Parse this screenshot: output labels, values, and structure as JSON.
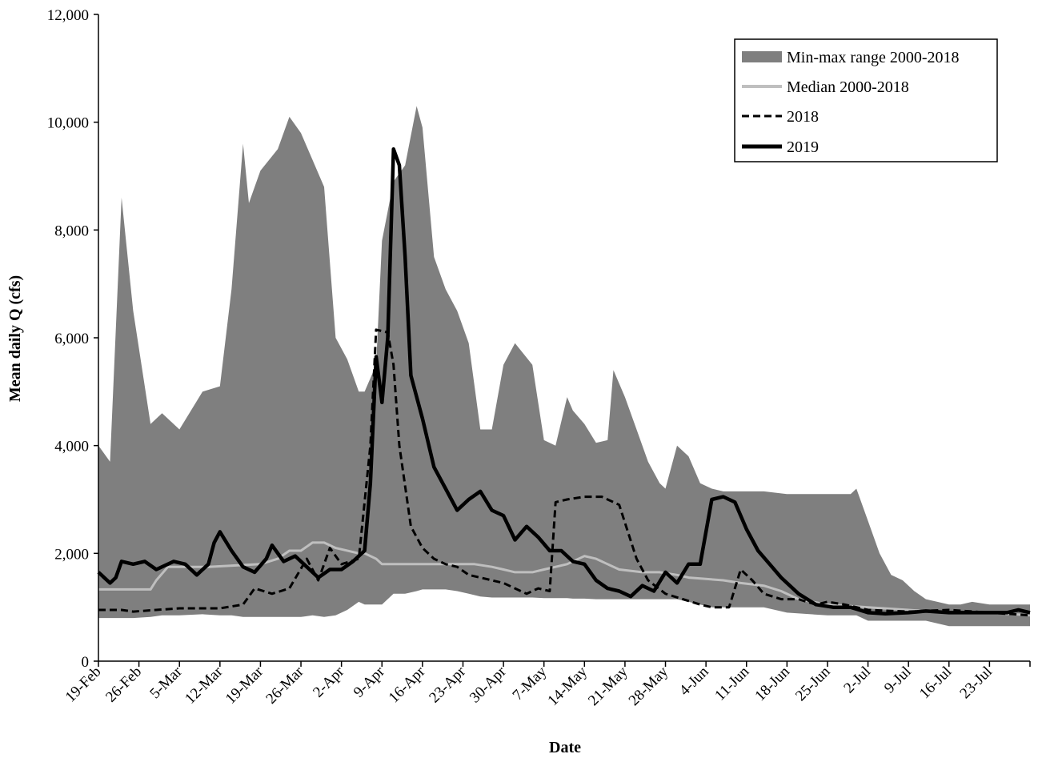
{
  "chart_data": {
    "type": "line",
    "title": "",
    "xlabel": "Date",
    "ylabel": "Mean daily Q (cfs)",
    "x_unit": "day",
    "x_start": "19-Feb",
    "x_end": "30-Jul",
    "ylim": [
      0,
      12000
    ],
    "yticks": [
      0,
      2000,
      4000,
      6000,
      8000,
      10000,
      12000
    ],
    "ytick_labels": [
      "0",
      "2,000",
      "4,000",
      "6,000",
      "8,000",
      "10,000",
      "12,000"
    ],
    "xtick_labels": [
      "19-Feb",
      "26-Feb",
      "5-Mar",
      "12-Mar",
      "19-Mar",
      "26-Mar",
      "2-Apr",
      "9-Apr",
      "16-Apr",
      "23-Apr",
      "30-Apr",
      "7-May",
      "14-May",
      "21-May",
      "28-May",
      "4-Jun",
      "11-Jun",
      "18-Jun",
      "25-Jun",
      "2-Jul",
      "9-Jul",
      "16-Jul",
      "23-Jul"
    ],
    "grid": false,
    "legend_position": "top-right",
    "colors": {
      "range_fill": "#7f7f7f",
      "median": "#bfbfbf",
      "y2018": "#000000",
      "y2019": "#000000"
    },
    "series": [
      {
        "name": "Min-max range 2000-2018",
        "kind": "band",
        "points": [
          [
            "19-Feb",
            800,
            4000
          ],
          [
            "21-Feb",
            800,
            3700
          ],
          [
            "23-Feb",
            800,
            8600
          ],
          [
            "25-Feb",
            800,
            6500
          ],
          [
            "28-Feb",
            820,
            4400
          ],
          [
            "2-Mar",
            850,
            4600
          ],
          [
            "5-Mar",
            850,
            4300
          ],
          [
            "9-Mar",
            870,
            5000
          ],
          [
            "12-Mar",
            850,
            5100
          ],
          [
            "14-Mar",
            850,
            6900
          ],
          [
            "16-Mar",
            820,
            9600
          ],
          [
            "17-Mar",
            820,
            8500
          ],
          [
            "19-Mar",
            820,
            9100
          ],
          [
            "22-Mar",
            820,
            9500
          ],
          [
            "24-Mar",
            820,
            10100
          ],
          [
            "26-Mar",
            820,
            9800
          ],
          [
            "28-Mar",
            850,
            9300
          ],
          [
            "30-Mar",
            820,
            8800
          ],
          [
            "1-Apr",
            850,
            6000
          ],
          [
            "3-Apr",
            950,
            5600
          ],
          [
            "5-Apr",
            1100,
            5000
          ],
          [
            "6-Apr",
            1050,
            5000
          ],
          [
            "8-Apr",
            1050,
            5500
          ],
          [
            "9-Apr",
            1050,
            7800
          ],
          [
            "11-Apr",
            1250,
            8900
          ],
          [
            "13-Apr",
            1250,
            9200
          ],
          [
            "15-Apr",
            1300,
            10300
          ],
          [
            "16-Apr",
            1330,
            9900
          ],
          [
            "18-Apr",
            1330,
            7500
          ],
          [
            "20-Apr",
            1330,
            6900
          ],
          [
            "22-Apr",
            1300,
            6500
          ],
          [
            "24-Apr",
            1250,
            5900
          ],
          [
            "26-Apr",
            1200,
            4300
          ],
          [
            "28-Apr",
            1180,
            4300
          ],
          [
            "30-Apr",
            1180,
            5500
          ],
          [
            "2-May",
            1180,
            5900
          ],
          [
            "5-May",
            1180,
            5500
          ],
          [
            "7-May",
            1170,
            4100
          ],
          [
            "9-May",
            1170,
            4000
          ],
          [
            "11-May",
            1170,
            4900
          ],
          [
            "12-May",
            1160,
            4650
          ],
          [
            "14-May",
            1160,
            4400
          ],
          [
            "16-May",
            1150,
            4050
          ],
          [
            "18-May",
            1150,
            4100
          ],
          [
            "19-May",
            1150,
            5400
          ],
          [
            "21-May",
            1150,
            4900
          ],
          [
            "23-May",
            1150,
            4300
          ],
          [
            "25-May",
            1150,
            3700
          ],
          [
            "27-May",
            1150,
            3300
          ],
          [
            "28-May",
            1150,
            3200
          ],
          [
            "30-May",
            1150,
            4000
          ],
          [
            "1-Jun",
            1100,
            3800
          ],
          [
            "3-Jun",
            1050,
            3300
          ],
          [
            "5-Jun",
            1000,
            3200
          ],
          [
            "7-Jun",
            1000,
            3150
          ],
          [
            "10-Jun",
            1000,
            3150
          ],
          [
            "14-Jun",
            1000,
            3150
          ],
          [
            "18-Jun",
            900,
            3100
          ],
          [
            "25-Jun",
            850,
            3100
          ],
          [
            "29-Jun",
            850,
            3100
          ],
          [
            "30-Jun",
            850,
            3200
          ],
          [
            "2-Jul",
            750,
            2600
          ],
          [
            "4-Jul",
            750,
            2000
          ],
          [
            "6-Jul",
            750,
            1600
          ],
          [
            "8-Jul",
            750,
            1500
          ],
          [
            "10-Jul",
            750,
            1300
          ],
          [
            "12-Jul",
            750,
            1150
          ],
          [
            "14-Jul",
            700,
            1100
          ],
          [
            "16-Jul",
            650,
            1050
          ],
          [
            "18-Jul",
            650,
            1050
          ],
          [
            "20-Jul",
            650,
            1100
          ],
          [
            "23-Jul",
            650,
            1050
          ],
          [
            "26-Jul",
            650,
            1050
          ],
          [
            "29-Jul",
            650,
            1050
          ],
          [
            "30-Jul",
            650,
            1050
          ]
        ]
      },
      {
        "name": "Median 2000-2018",
        "kind": "line",
        "points": [
          [
            "19-Feb",
            1330
          ],
          [
            "26-Feb",
            1330
          ],
          [
            "28-Feb",
            1330
          ],
          [
            "1-Mar",
            1500
          ],
          [
            "3-Mar",
            1750
          ],
          [
            "10-Mar",
            1750
          ],
          [
            "19-Mar",
            1800
          ],
          [
            "22-Mar",
            1900
          ],
          [
            "24-Mar",
            2050
          ],
          [
            "26-Mar",
            2050
          ],
          [
            "28-Mar",
            2200
          ],
          [
            "30-Mar",
            2200
          ],
          [
            "1-Apr",
            2100
          ],
          [
            "5-Apr",
            2000
          ],
          [
            "6-Apr",
            2000
          ],
          [
            "8-Apr",
            1900
          ],
          [
            "9-Apr",
            1800
          ],
          [
            "12-Apr",
            1800
          ],
          [
            "16-Apr",
            1800
          ],
          [
            "20-Apr",
            1800
          ],
          [
            "25-Apr",
            1800
          ],
          [
            "28-Apr",
            1750
          ],
          [
            "30-Apr",
            1700
          ],
          [
            "2-May",
            1650
          ],
          [
            "5-May",
            1650
          ],
          [
            "7-May",
            1700
          ],
          [
            "9-May",
            1750
          ],
          [
            "11-May",
            1800
          ],
          [
            "14-May",
            1950
          ],
          [
            "16-May",
            1900
          ],
          [
            "18-May",
            1800
          ],
          [
            "20-May",
            1700
          ],
          [
            "24-May",
            1650
          ],
          [
            "27-May",
            1650
          ],
          [
            "30-May",
            1600
          ],
          [
            "1-Jun",
            1550
          ],
          [
            "7-Jun",
            1500
          ],
          [
            "10-Jun",
            1450
          ],
          [
            "14-Jun",
            1400
          ],
          [
            "17-Jun",
            1300
          ],
          [
            "20-Jun",
            1150
          ],
          [
            "25-Jun",
            1050
          ],
          [
            "2-Jul",
            1000
          ],
          [
            "9-Jul",
            950
          ],
          [
            "16-Jul",
            900
          ],
          [
            "23-Jul",
            900
          ],
          [
            "30-Jul",
            850
          ]
        ]
      },
      {
        "name": "2018",
        "kind": "line",
        "style": "dashed",
        "points": [
          [
            "19-Feb",
            950
          ],
          [
            "23-Feb",
            950
          ],
          [
            "25-Feb",
            920
          ],
          [
            "1-Mar",
            950
          ],
          [
            "5-Mar",
            980
          ],
          [
            "12-Mar",
            980
          ],
          [
            "16-Mar",
            1050
          ],
          [
            "18-Mar",
            1350
          ],
          [
            "21-Mar",
            1250
          ],
          [
            "24-Mar",
            1350
          ],
          [
            "27-Mar",
            1900
          ],
          [
            "29-Mar",
            1500
          ],
          [
            "31-Mar",
            2100
          ],
          [
            "2-Apr",
            1800
          ],
          [
            "5-Apr",
            1900
          ],
          [
            "7-Apr",
            4000
          ],
          [
            "8-Apr",
            6150
          ],
          [
            "10-Apr",
            6100
          ],
          [
            "11-Apr",
            5500
          ],
          [
            "12-Apr",
            4000
          ],
          [
            "14-Apr",
            2500
          ],
          [
            "16-Apr",
            2100
          ],
          [
            "18-Apr",
            1900
          ],
          [
            "20-Apr",
            1800
          ],
          [
            "22-Apr",
            1750
          ],
          [
            "24-Apr",
            1600
          ],
          [
            "26-Apr",
            1550
          ],
          [
            "28-Apr",
            1500
          ],
          [
            "30-Apr",
            1450
          ],
          [
            "2-May",
            1350
          ],
          [
            "4-May",
            1250
          ],
          [
            "6-May",
            1350
          ],
          [
            "8-May",
            1300
          ],
          [
            "9-May",
            2950
          ],
          [
            "11-May",
            3000
          ],
          [
            "14-May",
            3050
          ],
          [
            "17-May",
            3050
          ],
          [
            "20-May",
            2900
          ],
          [
            "23-May",
            1900
          ],
          [
            "25-May",
            1500
          ],
          [
            "28-May",
            1250
          ],
          [
            "31-May",
            1150
          ],
          [
            "3-Jun",
            1050
          ],
          [
            "5-Jun",
            1000
          ],
          [
            "8-Jun",
            1000
          ],
          [
            "10-Jun",
            1700
          ],
          [
            "12-Jun",
            1500
          ],
          [
            "14-Jun",
            1250
          ],
          [
            "17-Jun",
            1150
          ],
          [
            "20-Jun",
            1150
          ],
          [
            "23-Jun",
            1050
          ],
          [
            "25-Jun",
            1100
          ],
          [
            "28-Jun",
            1050
          ],
          [
            "2-Jul",
            950
          ],
          [
            "9-Jul",
            920
          ],
          [
            "16-Jul",
            950
          ],
          [
            "23-Jul",
            900
          ],
          [
            "30-Jul",
            850
          ]
        ]
      },
      {
        "name": "2019",
        "kind": "line",
        "style": "solid",
        "points": [
          [
            "19-Feb",
            1650
          ],
          [
            "21-Feb",
            1450
          ],
          [
            "22-Feb",
            1550
          ],
          [
            "23-Feb",
            1850
          ],
          [
            "25-Feb",
            1800
          ],
          [
            "27-Feb",
            1850
          ],
          [
            "1-Mar",
            1700
          ],
          [
            "4-Mar",
            1850
          ],
          [
            "6-Mar",
            1800
          ],
          [
            "8-Mar",
            1600
          ],
          [
            "10-Mar",
            1800
          ],
          [
            "11-Mar",
            2200
          ],
          [
            "12-Mar",
            2400
          ],
          [
            "14-Mar",
            2050
          ],
          [
            "16-Mar",
            1750
          ],
          [
            "18-Mar",
            1650
          ],
          [
            "20-Mar",
            1900
          ],
          [
            "21-Mar",
            2150
          ],
          [
            "23-Mar",
            1850
          ],
          [
            "25-Mar",
            1950
          ],
          [
            "27-Mar",
            1750
          ],
          [
            "29-Mar",
            1550
          ],
          [
            "31-Mar",
            1700
          ],
          [
            "2-Apr",
            1700
          ],
          [
            "4-Apr",
            1850
          ],
          [
            "6-Apr",
            2050
          ],
          [
            "7-Apr",
            3300
          ],
          [
            "8-Apr",
            5650
          ],
          [
            "9-Apr",
            4800
          ],
          [
            "10-Apr",
            6000
          ],
          [
            "11-Apr",
            9500
          ],
          [
            "12-Apr",
            9200
          ],
          [
            "13-Apr",
            7500
          ],
          [
            "14-Apr",
            5300
          ],
          [
            "16-Apr",
            4500
          ],
          [
            "18-Apr",
            3600
          ],
          [
            "20-Apr",
            3200
          ],
          [
            "22-Apr",
            2800
          ],
          [
            "24-Apr",
            3000
          ],
          [
            "26-Apr",
            3150
          ],
          [
            "28-Apr",
            2800
          ],
          [
            "30-Apr",
            2700
          ],
          [
            "2-May",
            2250
          ],
          [
            "4-May",
            2500
          ],
          [
            "6-May",
            2300
          ],
          [
            "8-May",
            2050
          ],
          [
            "10-May",
            2050
          ],
          [
            "12-May",
            1850
          ],
          [
            "14-May",
            1800
          ],
          [
            "16-May",
            1500
          ],
          [
            "18-May",
            1350
          ],
          [
            "20-May",
            1300
          ],
          [
            "22-May",
            1200
          ],
          [
            "24-May",
            1400
          ],
          [
            "26-May",
            1300
          ],
          [
            "28-May",
            1650
          ],
          [
            "30-May",
            1450
          ],
          [
            "1-Jun",
            1800
          ],
          [
            "3-Jun",
            1800
          ],
          [
            "5-Jun",
            3000
          ],
          [
            "7-Jun",
            3050
          ],
          [
            "9-Jun",
            2950
          ],
          [
            "11-Jun",
            2450
          ],
          [
            "13-Jun",
            2050
          ],
          [
            "15-Jun",
            1800
          ],
          [
            "17-Jun",
            1550
          ],
          [
            "20-Jun",
            1250
          ],
          [
            "23-Jun",
            1050
          ],
          [
            "26-Jun",
            1000
          ],
          [
            "29-Jun",
            1000
          ],
          [
            "2-Jul",
            900
          ],
          [
            "5-Jul",
            880
          ],
          [
            "9-Jul",
            900
          ],
          [
            "12-Jul",
            930
          ],
          [
            "16-Jul",
            900
          ],
          [
            "20-Jul",
            900
          ],
          [
            "23-Jul",
            900
          ],
          [
            "26-Jul",
            900
          ],
          [
            "28-Jul",
            950
          ],
          [
            "30-Jul",
            900
          ]
        ]
      }
    ]
  }
}
